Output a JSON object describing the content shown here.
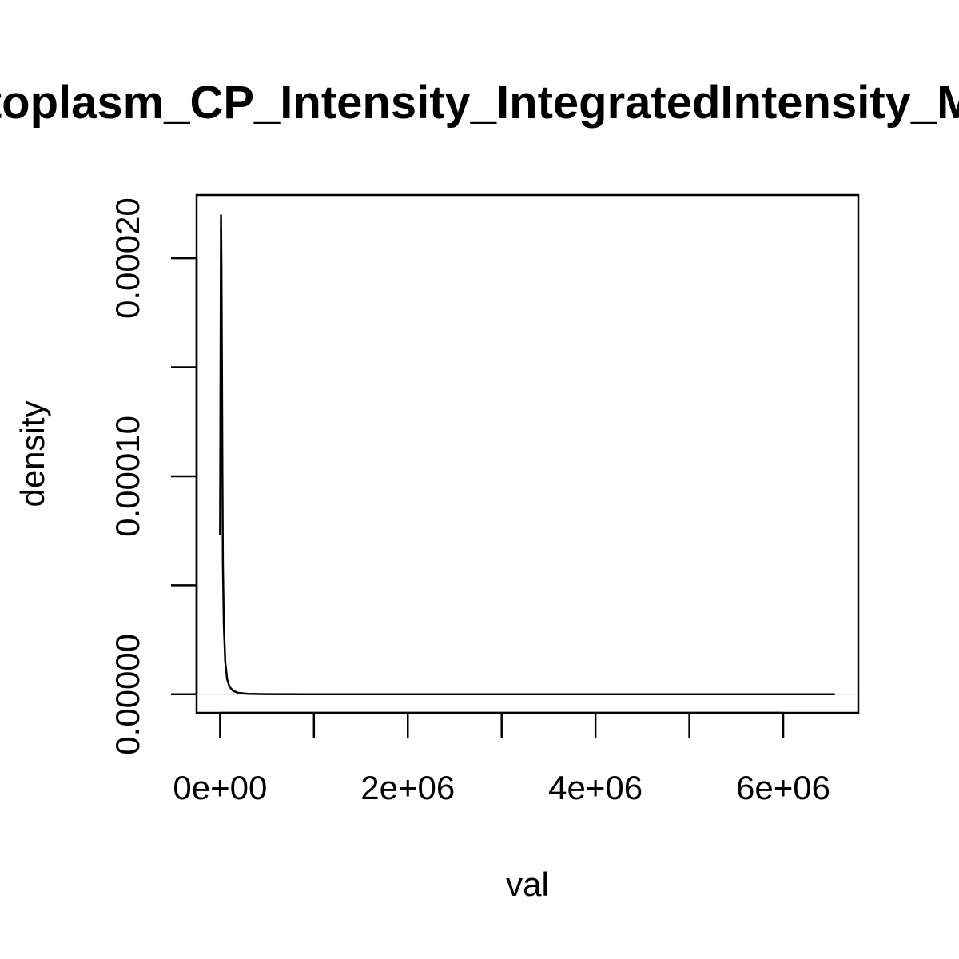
{
  "chart_data": {
    "type": "line",
    "title": "Cytoplasm_CP_Intensity_IntegratedIntensity_Mito",
    "xlabel": "val",
    "ylabel": "density",
    "xlim": [
      -250000,
      6800000
    ],
    "ylim": [
      -8.5e-06,
      0.000229
    ],
    "x_ticks": [
      {
        "value": 0,
        "label": "0e+00"
      },
      {
        "value": 1000000,
        "label": ""
      },
      {
        "value": 2000000,
        "label": "2e+06"
      },
      {
        "value": 3000000,
        "label": ""
      },
      {
        "value": 4000000,
        "label": "4e+06"
      },
      {
        "value": 5000000,
        "label": ""
      },
      {
        "value": 6000000,
        "label": "6e+06"
      }
    ],
    "y_ticks": [
      {
        "value": 0,
        "label": "0.00000"
      },
      {
        "value": 5e-05,
        "label": ""
      },
      {
        "value": 0.0001,
        "label": "0.00010"
      },
      {
        "value": 0.00015,
        "label": ""
      },
      {
        "value": 0.0002,
        "label": "0.00020"
      }
    ],
    "grid": false,
    "baseline_y": 0,
    "colors": {
      "line": "#000000",
      "baseline": "#d9d9d9",
      "axis": "#000000"
    },
    "series": [
      {
        "values": [
          {
            "x": 0,
            "y": 7.3e-05
          },
          {
            "x": 10000,
            "y": 0.00022
          },
          {
            "x": 15000,
            "y": 0.000195
          },
          {
            "x": 20000,
            "y": 0.00015
          },
          {
            "x": 25000,
            "y": 0.0001
          },
          {
            "x": 30000,
            "y": 6e-05
          },
          {
            "x": 40000,
            "y": 3.2e-05
          },
          {
            "x": 55000,
            "y": 1.5e-05
          },
          {
            "x": 75000,
            "y": 7e-06
          },
          {
            "x": 100000,
            "y": 3.5e-06
          },
          {
            "x": 140000,
            "y": 1.5e-06
          },
          {
            "x": 200000,
            "y": 6e-07
          },
          {
            "x": 300000,
            "y": 2e-07
          },
          {
            "x": 500000,
            "y": 5e-08
          },
          {
            "x": 1000000,
            "y": 1e-08
          },
          {
            "x": 2000000,
            "y": 0.0
          },
          {
            "x": 4000000,
            "y": 0.0
          },
          {
            "x": 6550000,
            "y": 0.0
          }
        ]
      }
    ]
  }
}
